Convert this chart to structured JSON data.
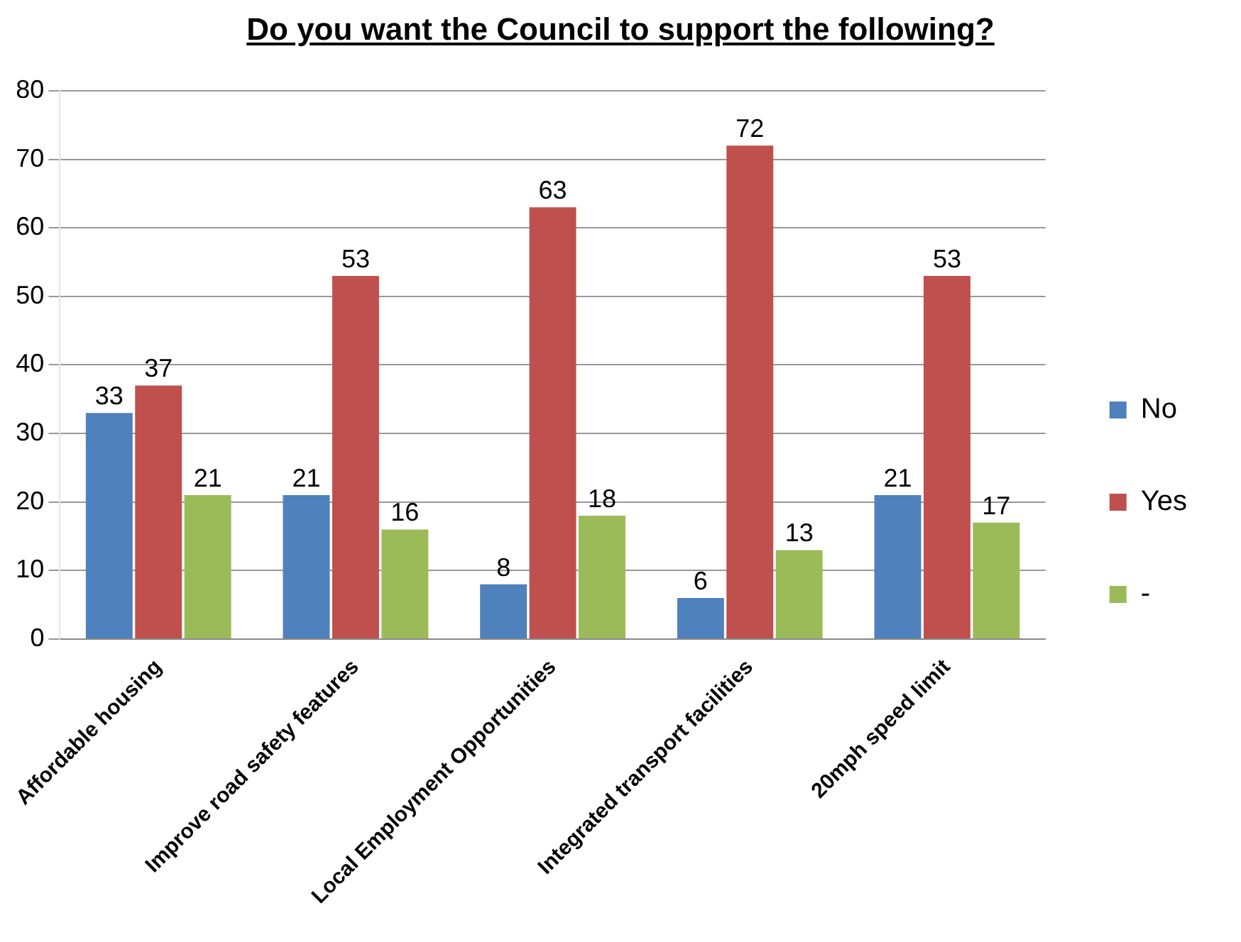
{
  "chart_data": {
    "type": "bar",
    "title": "Do you want the Council to support the following?",
    "categories": [
      "Affordable housing",
      "Improve road safety features",
      "Local Employment Opportunities",
      "Integrated transport facilities",
      "20mph speed limit"
    ],
    "series": [
      {
        "name": "No",
        "color": "#4f81bd",
        "values": [
          33,
          21,
          8,
          6,
          21
        ]
      },
      {
        "name": "Yes",
        "color": "#c0504d",
        "values": [
          37,
          53,
          63,
          72,
          53
        ]
      },
      {
        "name": "-",
        "color": "#9bbb59",
        "values": [
          21,
          16,
          18,
          13,
          17
        ]
      }
    ],
    "ylim": [
      0,
      80
    ],
    "yticks": [
      0,
      10,
      20,
      30,
      40,
      50,
      60,
      70,
      80
    ],
    "grid": "y",
    "legend": "right",
    "data_labels": true
  }
}
